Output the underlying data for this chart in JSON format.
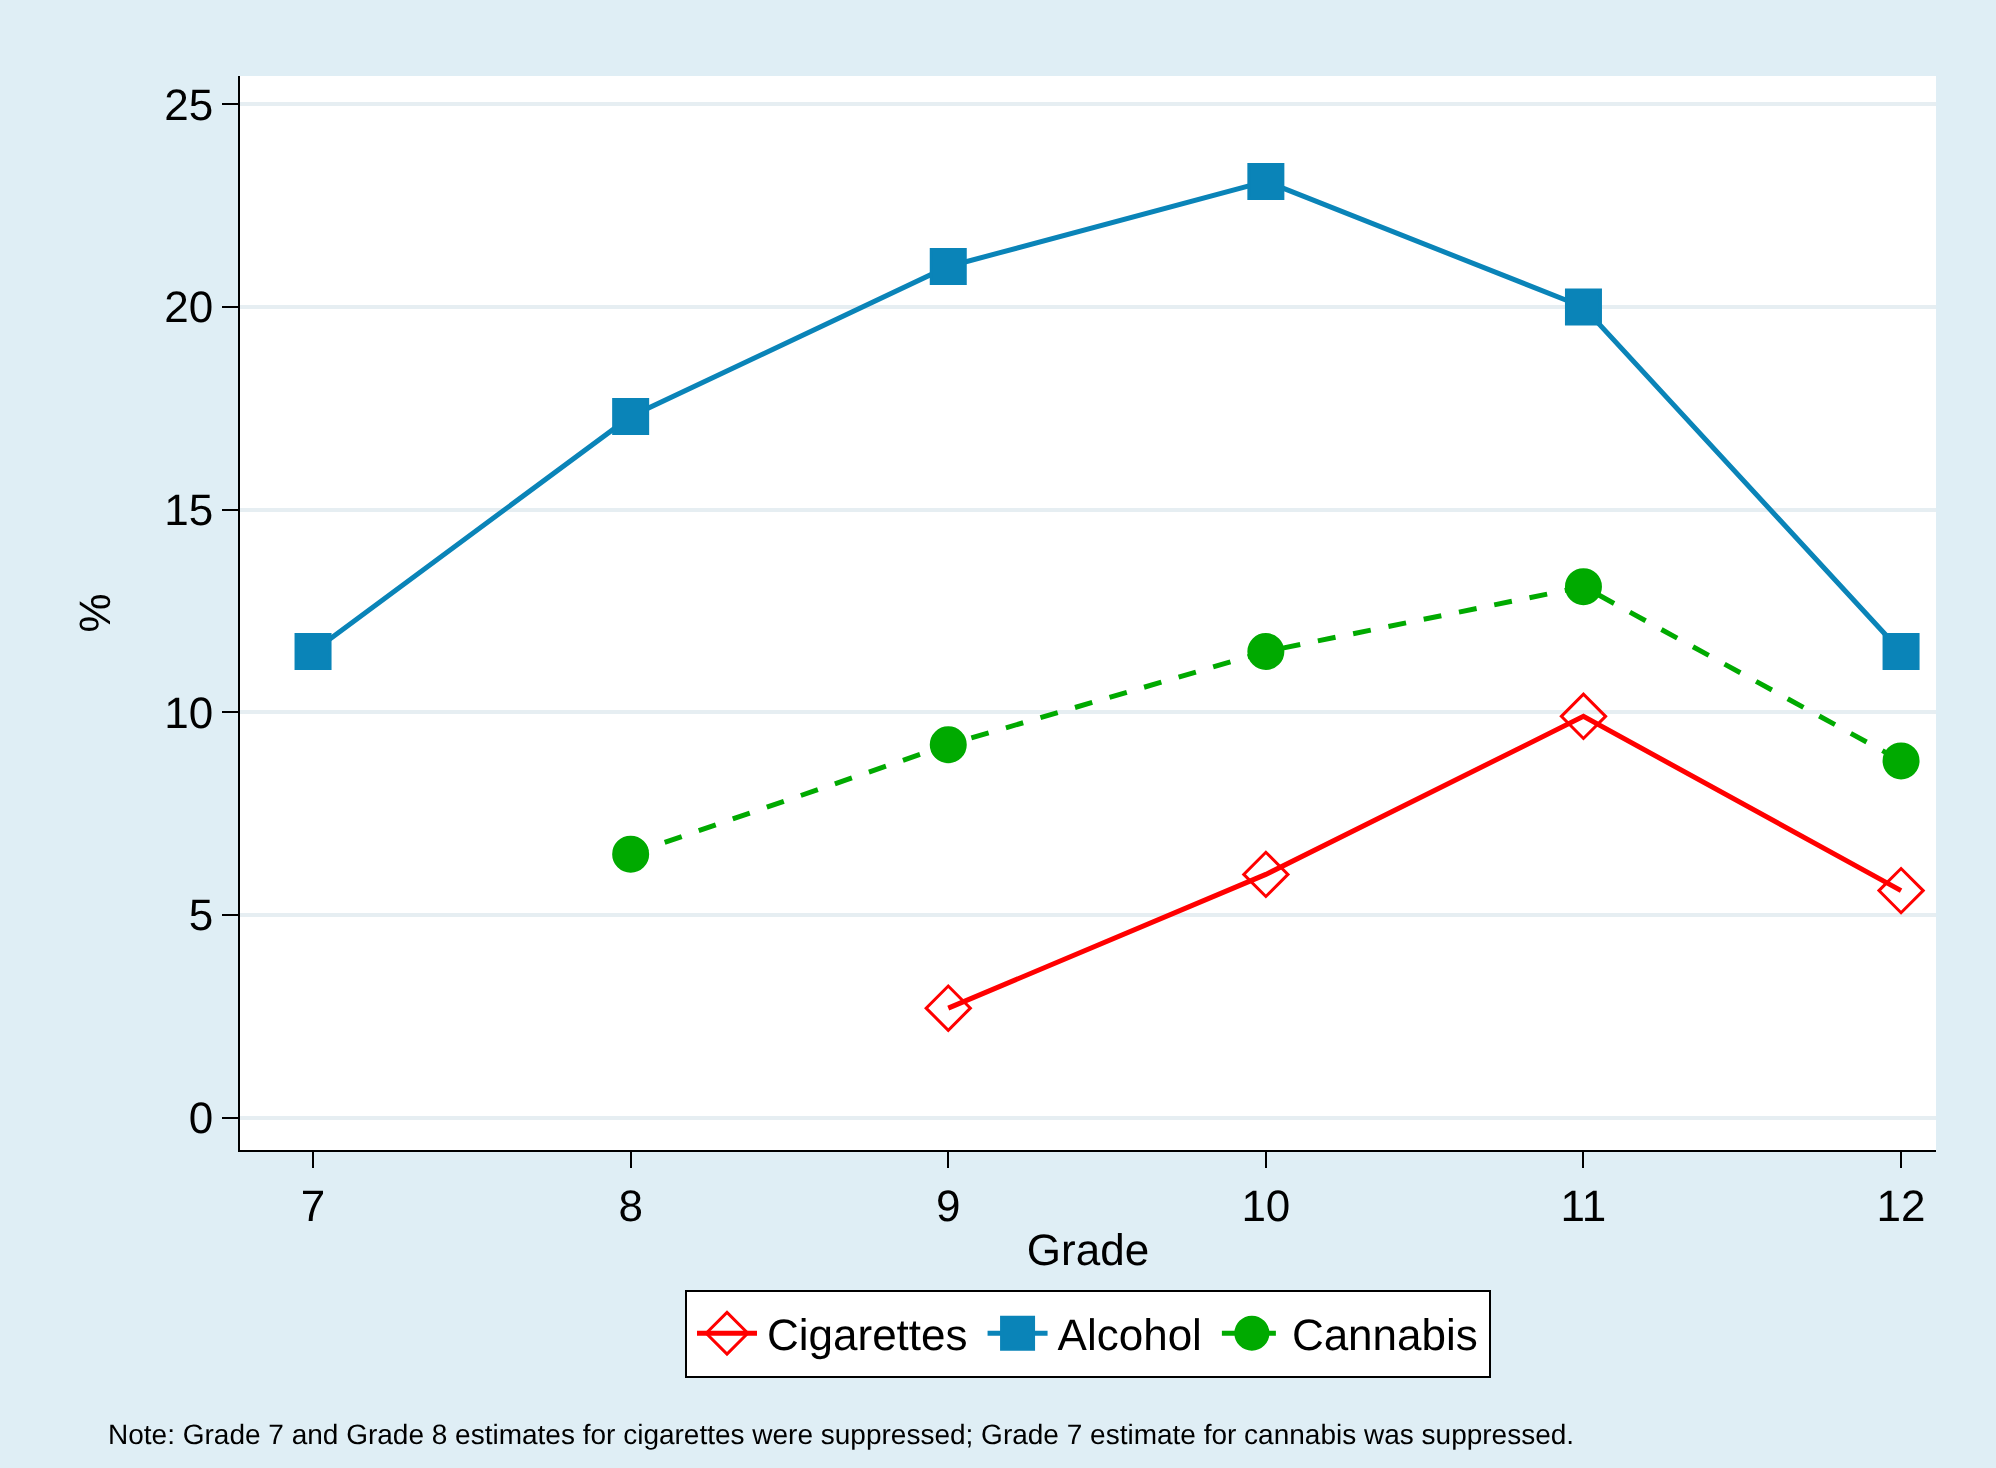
{
  "chart_data": {
    "type": "line",
    "xlabel": "Grade",
    "ylabel": "%",
    "x": [
      7,
      8,
      9,
      10,
      11,
      12
    ],
    "xlim": [
      6.77,
      12.11
    ],
    "xticks": [
      7,
      8,
      9,
      10,
      11,
      12
    ],
    "ylim": [
      -0.8,
      25.7
    ],
    "yticks": [
      0,
      5,
      10,
      15,
      20,
      25
    ],
    "grid": "y",
    "legend": "bottom",
    "series": [
      {
        "name": "Cigarettes",
        "color": "#ff0000",
        "marker": "diamond",
        "line_style": "solid",
        "values": [
          null,
          null,
          2.7,
          6.0,
          9.9,
          5.6
        ]
      },
      {
        "name": "Alcohol",
        "color": "#0a84b8",
        "marker": "square",
        "line_style": "solid",
        "values": [
          11.5,
          17.3,
          21.0,
          23.1,
          20.0,
          11.5
        ]
      },
      {
        "name": "Cannabis",
        "color": "#00aa00",
        "marker": "circle",
        "line_style": "dashed",
        "values": [
          null,
          6.5,
          9.2,
          11.5,
          13.1,
          8.8
        ]
      }
    ],
    "annotations": [
      "Note: Grade 7 and Grade 8 estimates for cigarettes were suppressed; Grade 7 estimate for cannabis was suppressed."
    ]
  }
}
